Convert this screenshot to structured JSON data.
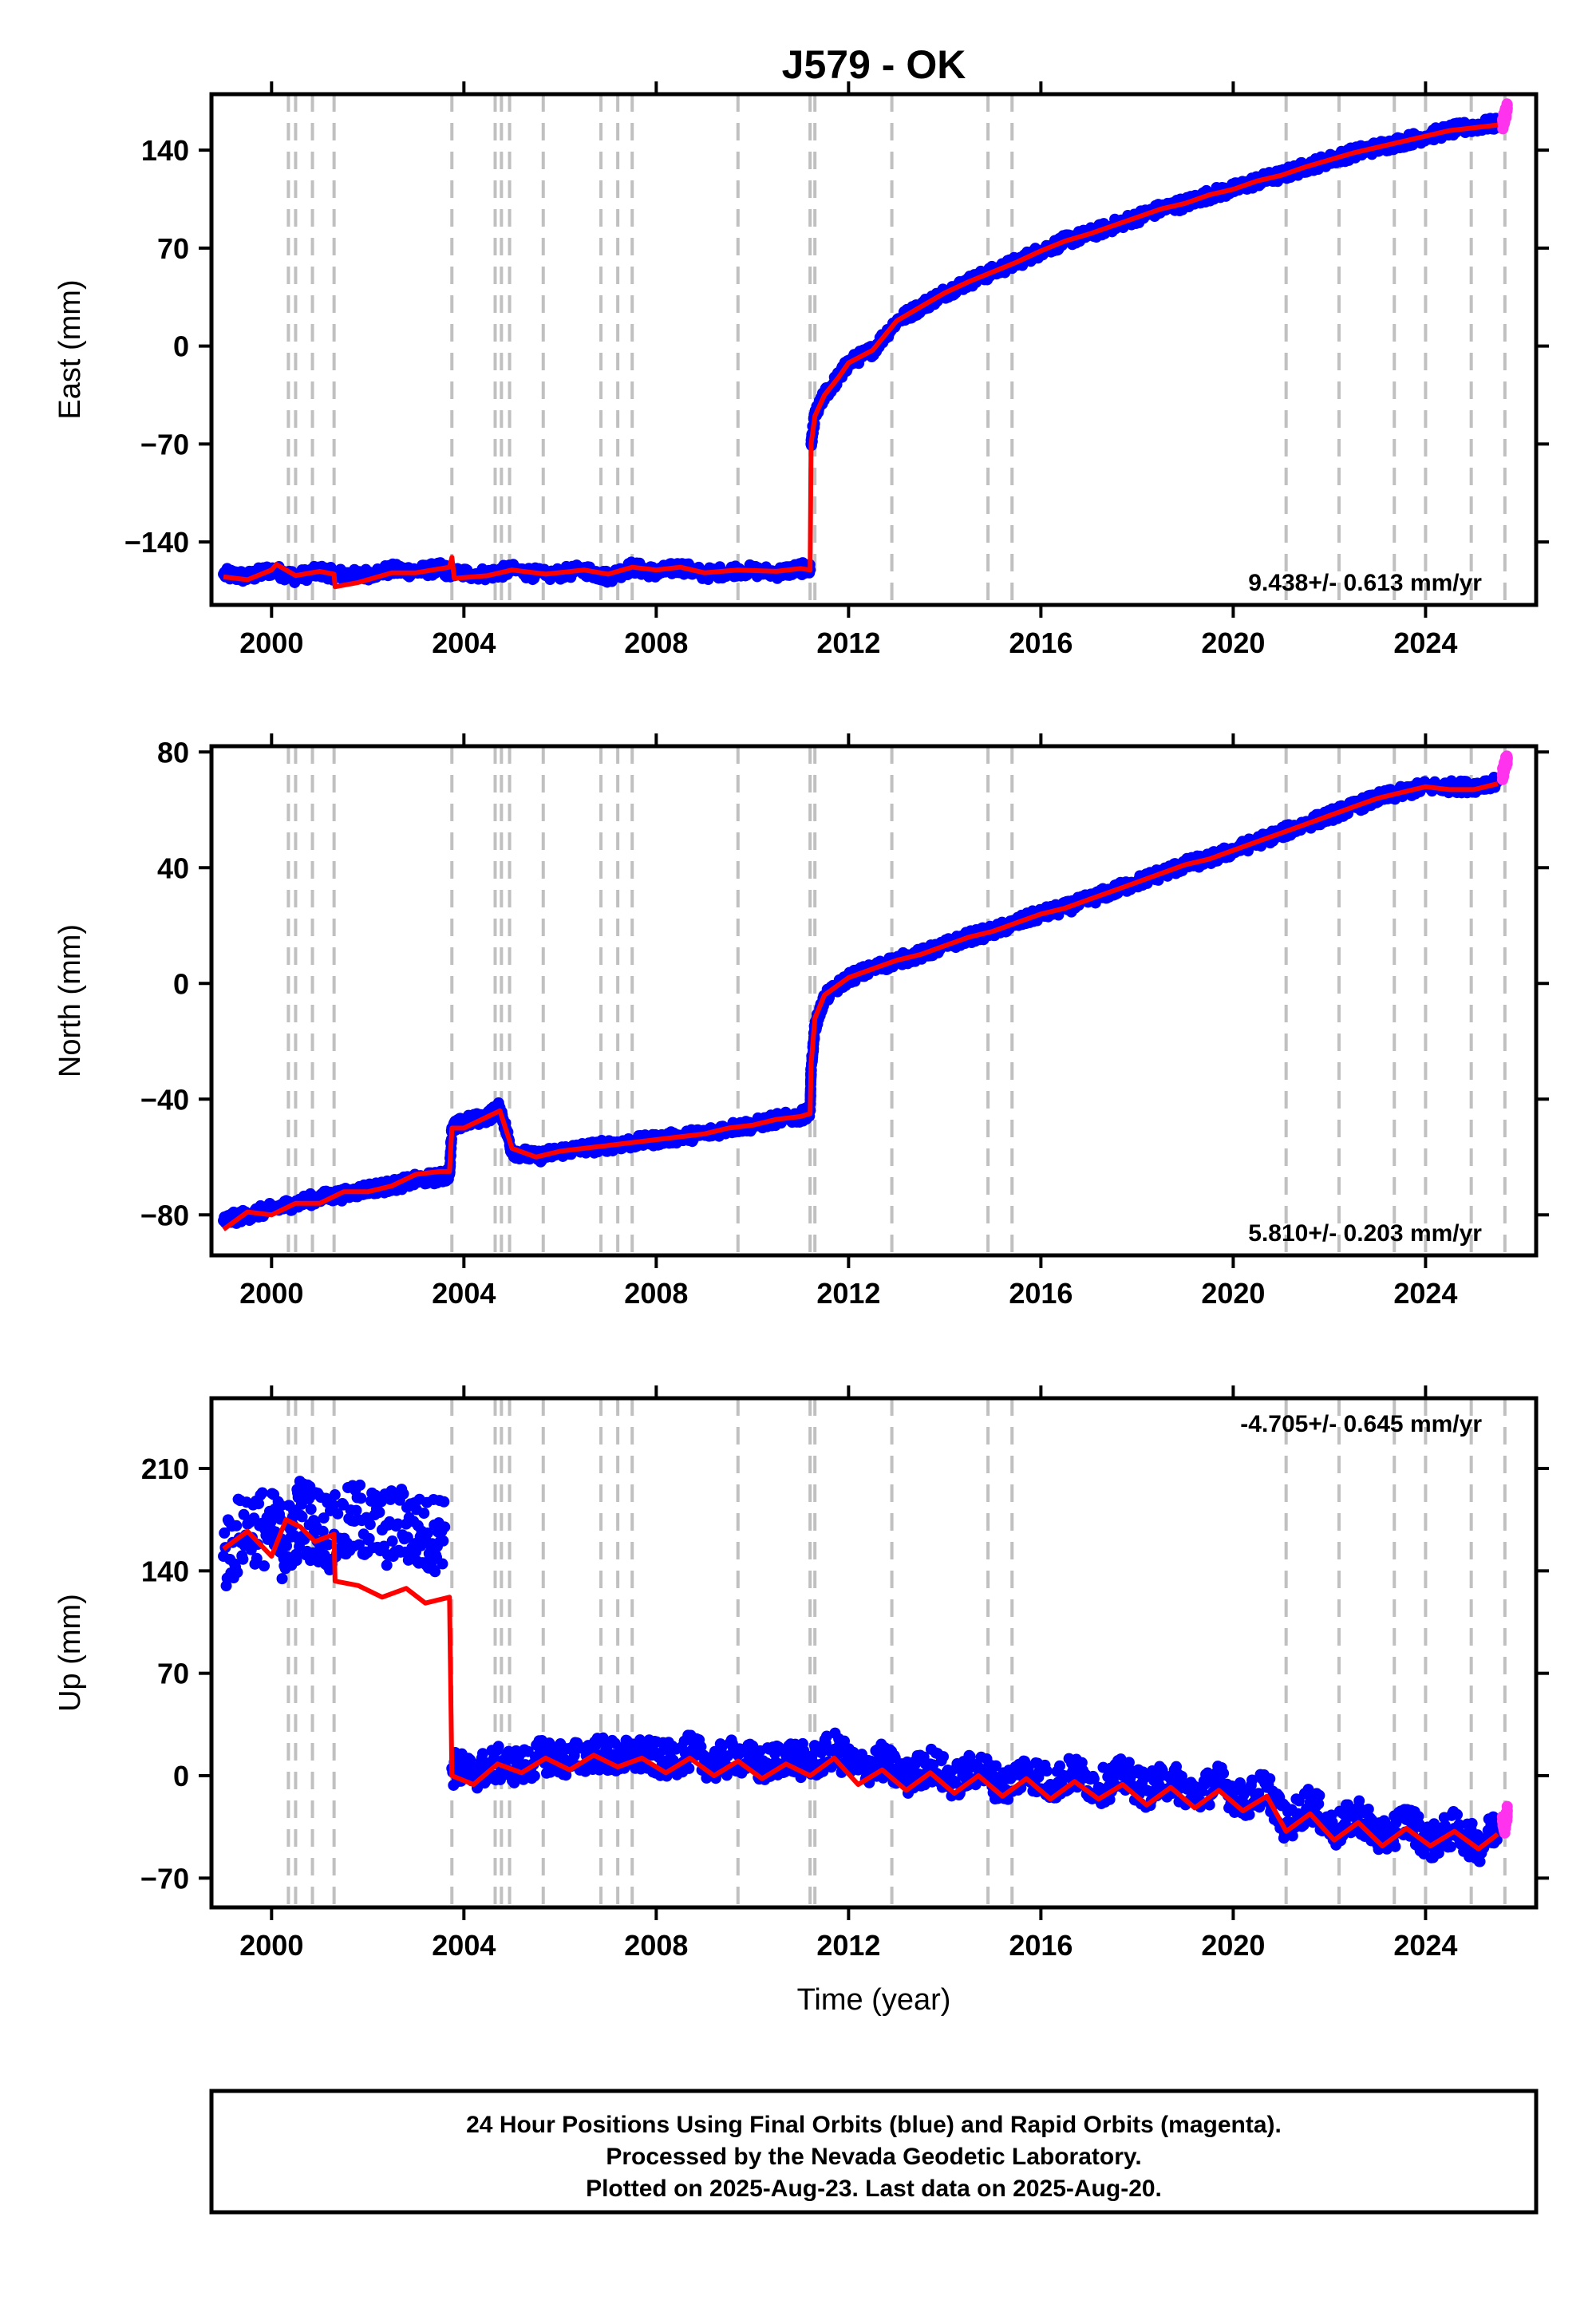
{
  "chart_data": {
    "type": "scatter",
    "title": "J579 - OK",
    "xlabel": "Time (year)",
    "xlim": [
      1998.75,
      2026.3
    ],
    "x_ticks": [
      "2000",
      "2004",
      "2008",
      "2012",
      "2016",
      "2020",
      "2024"
    ],
    "x_tick_values": [
      2000,
      2004,
      2008,
      2012,
      2016,
      2020,
      2024
    ],
    "equipment_change_years": [
      2000.35,
      2000.5,
      2000.85,
      2001.3,
      2003.75,
      2004.65,
      2004.78,
      2004.95,
      2005.65,
      2006.85,
      2007.2,
      2007.5,
      2009.7,
      2011.2,
      2011.3,
      2012.9,
      2014.9,
      2015.4,
      2021.1,
      2022.2,
      2023.35,
      2024.0,
      2024.95,
      2025.65
    ],
    "colors": {
      "final": "#0000ff",
      "rapid": "#ff33ee",
      "model": "#ff0000",
      "events": "#c0c0c0"
    },
    "panels": [
      {
        "ylabel": "East (mm)",
        "ylim": [
          -185,
          180
        ],
        "yticks": [
          "140",
          "70",
          "0",
          "−70",
          "−140"
        ],
        "ytick_values": [
          140,
          70,
          0,
          -70,
          -140
        ],
        "rate": "9.438+/- 0.613 mm/yr",
        "rate_position": "bottom-right",
        "series": [
          {
            "name": "Final Orbits",
            "color": "blue",
            "x": [
              1999.0,
              1999.5,
              2000.0,
              2000.5,
              2001.0,
              2001.3,
              2001.8,
              2002.5,
              2003.0,
              2003.5,
              2003.75,
              2004.5,
              2005.0,
              2005.7,
              2006.5,
              2007.0,
              2007.5,
              2008.0,
              2008.5,
              2009.0,
              2009.7,
              2010.5,
              2011.0,
              2011.2,
              2011.22,
              2011.3,
              2011.5,
              2011.8,
              2012.0,
              2012.5,
              2013.0,
              2013.5,
              2014.0,
              2014.5,
              2015.0,
              2015.5,
              2016.0,
              2016.5,
              2017.0,
              2017.5,
              2018.0,
              2018.5,
              2019.0,
              2019.5,
              2020.0,
              2020.5,
              2021.0,
              2021.5,
              2022.0,
              2022.5,
              2023.0,
              2023.5,
              2024.0,
              2024.5,
              2025.0,
              2025.5
            ],
            "y": [
              -163,
              -165,
              -160,
              -165,
              -161,
              -163,
              -164,
              -160,
              -161,
              -159,
              -162,
              -163,
              -160,
              -164,
              -160,
              -165,
              -158,
              -162,
              -158,
              -163,
              -160,
              -162,
              -159,
              -160,
              -70,
              -50,
              -35,
              -22,
              -12,
              -3,
              18,
              28,
              38,
              46,
              53,
              60,
              68,
              75,
              80,
              86,
              92,
              98,
              102,
              108,
              112,
              118,
              122,
              128,
              133,
              138,
              142,
              146,
              150,
              154,
              157,
              159
            ]
          },
          {
            "name": "Rapid Orbits",
            "color": "magenta",
            "x": [
              2025.6,
              2025.65,
              2025.7
            ],
            "y": [
              158,
              165,
              170
            ]
          },
          {
            "name": "Model",
            "color": "red",
            "x": [
              1999.0,
              1999.5,
              2000.0,
              2000.1,
              2000.5,
              2001.0,
              2001.3,
              2001.32,
              2001.8,
              2002.5,
              2003.0,
              2003.7,
              2003.75,
              2003.8,
              2004.5,
              2005.0,
              2005.7,
              2006.5,
              2007.0,
              2007.5,
              2008.0,
              2008.5,
              2009.0,
              2009.7,
              2010.5,
              2011.0,
              2011.2,
              2011.22,
              2011.3,
              2011.5,
              2011.8,
              2012.0,
              2012.5,
              2013.0,
              2013.5,
              2014.0,
              2014.5,
              2015.0,
              2015.5,
              2016.0,
              2016.5,
              2017.0,
              2017.5,
              2018.0,
              2018.5,
              2019.0,
              2019.5,
              2020.0,
              2020.5,
              2021.0,
              2021.5,
              2022.0,
              2022.5,
              2023.0,
              2023.5,
              2024.0,
              2024.5,
              2025.0,
              2025.5
            ],
            "y": [
              -165,
              -167,
              -160,
              -156,
              -164,
              -161,
              -163,
              -172,
              -169,
              -162,
              -162,
              -158,
              -151,
              -166,
              -164,
              -160,
              -163,
              -160,
              -163,
              -158,
              -160,
              -158,
              -162,
              -160,
              -161,
              -159,
              -160,
              -70,
              -50,
              -35,
              -22,
              -12,
              -3,
              18,
              28,
              38,
              46,
              53,
              60,
              68,
              75,
              80,
              86,
              92,
              98,
              102,
              108,
              112,
              118,
              122,
              128,
              133,
              138,
              142,
              146,
              150,
              154,
              156,
              158
            ]
          }
        ]
      },
      {
        "ylabel": "North (mm)",
        "ylim": [
          -94,
          82
        ],
        "yticks": [
          "80",
          "40",
          "0",
          "−40",
          "−80"
        ],
        "ytick_values": [
          80,
          40,
          0,
          -40,
          -80
        ],
        "rate": "5.810+/- 0.203 mm/yr",
        "rate_position": "bottom-right",
        "series": [
          {
            "name": "Final Orbits",
            "color": "blue",
            "x": [
              1999.0,
              1999.5,
              2000.0,
              2000.5,
              2001.0,
              2001.5,
              2002.0,
              2002.5,
              2003.0,
              2003.5,
              2003.7,
              2003.75,
              2004.0,
              2004.5,
              2004.75,
              2005.0,
              2005.5,
              2006.0,
              2006.5,
              2007.0,
              2007.5,
              2008.0,
              2008.5,
              2009.0,
              2009.5,
              2010.0,
              2010.5,
              2011.0,
              2011.2,
              2011.22,
              2011.3,
              2011.5,
              2012.0,
              2012.5,
              2013.0,
              2013.5,
              2014.0,
              2014.5,
              2015.0,
              2015.5,
              2016.0,
              2016.5,
              2017.0,
              2017.5,
              2018.0,
              2018.5,
              2019.0,
              2019.5,
              2020.0,
              2020.5,
              2021.0,
              2021.5,
              2022.0,
              2022.5,
              2023.0,
              2023.5,
              2024.0,
              2024.5,
              2025.0,
              2025.5
            ],
            "y": [
              -82,
              -80,
              -78,
              -76,
              -74,
              -73,
              -71,
              -70,
              -68,
              -67,
              -66,
              -50,
              -48,
              -46,
              -43,
              -58,
              -60,
              -58,
              -57,
              -56,
              -55,
              -54,
              -53,
              -52,
              -50,
              -49,
              -47,
              -46,
              -44,
              -30,
              -15,
              -5,
              2,
              5,
              8,
              10,
              13,
              16,
              18,
              21,
              24,
              26,
              29,
              32,
              35,
              38,
              41,
              43,
              46,
              49,
              52,
              55,
              58,
              61,
              64,
              66,
              68,
              68,
              68,
              70
            ]
          },
          {
            "name": "Rapid Orbits",
            "color": "magenta",
            "x": [
              2025.6,
              2025.65,
              2025.7
            ],
            "y": [
              72,
              75,
              78
            ]
          },
          {
            "name": "Model",
            "color": "red",
            "x": [
              1999.0,
              1999.5,
              2000.0,
              2000.5,
              2001.0,
              2001.5,
              2002.0,
              2002.5,
              2003.0,
              2003.5,
              2003.7,
              2003.75,
              2004.0,
              2004.5,
              2004.75,
              2005.0,
              2005.5,
              2006.0,
              2006.5,
              2007.0,
              2007.5,
              2008.0,
              2008.5,
              2009.0,
              2009.5,
              2010.0,
              2010.5,
              2011.0,
              2011.2,
              2011.22,
              2011.3,
              2011.5,
              2012.0,
              2012.5,
              2013.0,
              2013.5,
              2014.0,
              2014.5,
              2015.0,
              2015.5,
              2016.0,
              2016.5,
              2017.0,
              2017.5,
              2018.0,
              2018.5,
              2019.0,
              2019.5,
              2020.0,
              2020.5,
              2021.0,
              2021.5,
              2022.0,
              2022.5,
              2023.0,
              2023.5,
              2024.0,
              2024.5,
              2025.0,
              2025.5
            ],
            "y": [
              -85,
              -79,
              -80,
              -76,
              -76,
              -72,
              -72,
              -70,
              -66,
              -65,
              -65,
              -50,
              -50,
              -46,
              -44,
              -57,
              -60,
              -58,
              -57,
              -56,
              -55,
              -54,
              -53,
              -52,
              -50,
              -49,
              -47,
              -46,
              -45,
              -28,
              -12,
              -4,
              2,
              5,
              8,
              10,
              13,
              16,
              18,
              21,
              24,
              26,
              29,
              32,
              35,
              38,
              41,
              43,
              46,
              49,
              52,
              55,
              58,
              61,
              64,
              66,
              68,
              67,
              67,
              69
            ]
          }
        ]
      },
      {
        "ylabel": "Up (mm)",
        "ylim": [
          -90,
          258
        ],
        "yticks": [
          "210",
          "140",
          "70",
          "0",
          "−70"
        ],
        "ytick_values": [
          210,
          140,
          70,
          0,
          -70
        ],
        "rate": "-4.705+/- 0.645 mm/yr",
        "rate_position": "top-right",
        "series": [
          {
            "name": "Final Orbits",
            "color": "blue",
            "x": [
              1999.0,
              1999.5,
              2000.0,
              2000.3,
              2000.6,
              2000.9,
              2001.3,
              2001.8,
              2002.3,
              2002.8,
              2003.2,
              2003.6,
              2003.75,
              2004.2,
              2004.7,
              2005.2,
              2005.7,
              2006.2,
              2006.7,
              2007.2,
              2007.7,
              2008.2,
              2008.7,
              2009.2,
              2009.7,
              2010.2,
              2010.7,
              2011.2,
              2011.7,
              2012.2,
              2012.7,
              2013.2,
              2013.7,
              2014.2,
              2014.7,
              2015.2,
              2015.7,
              2016.2,
              2016.7,
              2017.2,
              2017.7,
              2018.2,
              2018.7,
              2019.2,
              2019.7,
              2020.2,
              2020.7,
              2021.1,
              2021.6,
              2022.1,
              2022.6,
              2023.1,
              2023.6,
              2024.1,
              2024.6,
              2025.1,
              2025.5
            ],
            "y": [
              150,
              172,
              168,
              158,
              178,
              172,
              165,
              175,
              168,
              172,
              162,
              170,
              5,
              2,
              8,
              6,
              14,
              10,
              16,
              12,
              14,
              10,
              16,
              8,
              14,
              6,
              14,
              8,
              18,
              4,
              10,
              -2,
              8,
              -4,
              6,
              -8,
              4,
              -6,
              2,
              -8,
              0,
              -10,
              -2,
              -14,
              -4,
              -18,
              -8,
              -34,
              -18,
              -38,
              -26,
              -44,
              -30,
              -46,
              -36,
              -48,
              -34
            ]
          },
          {
            "name": "Rapid Orbits",
            "color": "magenta",
            "x": [
              2025.6,
              2025.65,
              2025.7
            ],
            "y": [
              -28,
              -36,
              -24
            ]
          },
          {
            "name": "Model",
            "color": "red",
            "x": [
              1999.0,
              1999.5,
              2000.0,
              2000.3,
              2000.6,
              2000.9,
              2001.3,
              2001.32,
              2001.8,
              2002.3,
              2002.8,
              2003.2,
              2003.7,
              2003.75,
              2004.2,
              2004.7,
              2005.2,
              2005.7,
              2006.2,
              2006.7,
              2007.2,
              2007.7,
              2008.2,
              2008.7,
              2009.2,
              2009.7,
              2010.2,
              2010.7,
              2011.2,
              2011.7,
              2012.2,
              2012.7,
              2013.2,
              2013.7,
              2014.2,
              2014.7,
              2015.2,
              2015.7,
              2016.2,
              2016.7,
              2017.2,
              2017.7,
              2018.2,
              2018.7,
              2019.2,
              2019.7,
              2020.2,
              2020.7,
              2021.1,
              2021.6,
              2022.1,
              2022.6,
              2023.1,
              2023.6,
              2024.1,
              2024.6,
              2025.1,
              2025.5
            ],
            "y": [
              155,
              167,
              150,
              175,
              170,
              160,
              165,
              133,
              130,
              122,
              128,
              118,
              122,
              0,
              -6,
              8,
              2,
              12,
              4,
              14,
              6,
              12,
              2,
              12,
              0,
              10,
              -2,
              8,
              0,
              12,
              -6,
              4,
              -10,
              2,
              -12,
              0,
              -14,
              -2,
              -16,
              -4,
              -16,
              -6,
              -20,
              -8,
              -22,
              -10,
              -24,
              -14,
              -38,
              -26,
              -44,
              -32,
              -48,
              -36,
              -48,
              -38,
              -50,
              -40
            ]
          }
        ]
      }
    ],
    "footer": [
      "24 Hour Positions Using Final Orbits (blue) and Rapid Orbits (magenta).",
      "Processed by the Nevada Geodetic Laboratory.",
      "Plotted on 2025-Aug-23. Last data on 2025-Aug-20."
    ]
  }
}
